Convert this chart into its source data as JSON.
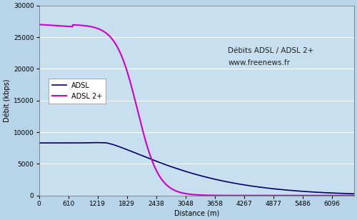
{
  "title_line1": "Débits ADSL / ADSL 2+",
  "title_line2": "www.freenews.fr",
  "xlabel": "Distance (m)",
  "ylabel": "Débit (kbps)",
  "xlim": [
    0,
    6553
  ],
  "ylim": [
    0,
    30000
  ],
  "yticks": [
    0,
    5000,
    10000,
    15000,
    20000,
    25000,
    30000
  ],
  "xticks": [
    0,
    610,
    1219,
    1829,
    2438,
    3048,
    3658,
    4267,
    4877,
    5486,
    6096
  ],
  "bg_color": "#b8d4e8",
  "plot_bg_color": "#c8dff0",
  "adsl_color": "#000066",
  "adsl2_color": "#cc00cc",
  "legend_labels": [
    "ADSL",
    "ADSL 2+"
  ],
  "figsize": [
    5.0,
    3.08
  ],
  "dpi": 100
}
